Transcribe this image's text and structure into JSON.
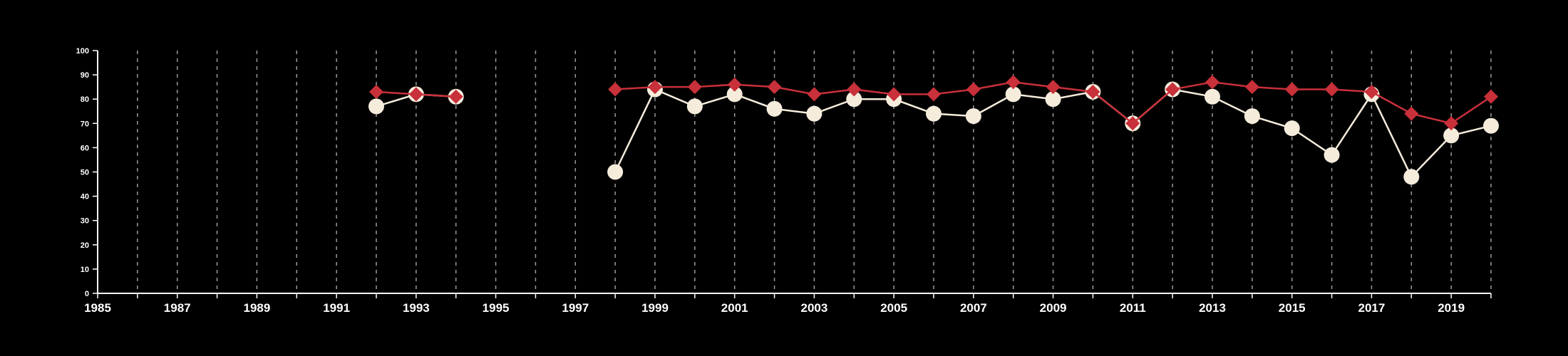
{
  "chart_data": {
    "type": "line",
    "title": "",
    "xlabel": "",
    "ylabel": "",
    "xlim": [
      1985,
      2020
    ],
    "ylim": [
      0,
      100
    ],
    "x_ticks": [
      1985,
      1987,
      1989,
      1991,
      1993,
      1995,
      1997,
      1999,
      2001,
      2003,
      2005,
      2007,
      2009,
      2011,
      2013,
      2015,
      2017,
      2019
    ],
    "y_ticks": [
      0,
      10,
      20,
      30,
      40,
      50,
      60,
      70,
      80,
      90,
      100
    ],
    "grid": "vertical-dashed",
    "legend": "none",
    "background": "#000000",
    "series": [
      {
        "color": "#c8303a",
        "marker": "diamond",
        "points": [
          [
            1992,
            83
          ],
          [
            1993,
            82
          ],
          [
            1994,
            81
          ],
          [
            1995,
            null
          ],
          [
            1996,
            null
          ],
          [
            1997,
            null
          ],
          [
            1998,
            84
          ],
          [
            1999,
            85
          ],
          [
            2000,
            85
          ],
          [
            2001,
            86
          ],
          [
            2002,
            85
          ],
          [
            2003,
            82
          ],
          [
            2004,
            84
          ],
          [
            2005,
            82
          ],
          [
            2006,
            82
          ],
          [
            2007,
            84
          ],
          [
            2008,
            87
          ],
          [
            2009,
            85
          ],
          [
            2010,
            83
          ],
          [
            2011,
            70
          ],
          [
            2012,
            84
          ],
          [
            2013,
            87
          ],
          [
            2014,
            85
          ],
          [
            2015,
            84
          ],
          [
            2016,
            84
          ],
          [
            2017,
            83
          ],
          [
            2018,
            74
          ],
          [
            2019,
            70
          ],
          [
            2020,
            81
          ]
        ]
      },
      {
        "color": "#f5ecdc",
        "marker": "circle",
        "points": [
          [
            1992,
            77
          ],
          [
            1993,
            82
          ],
          [
            1994,
            81
          ],
          [
            1995,
            null
          ],
          [
            1996,
            null
          ],
          [
            1997,
            null
          ],
          [
            1998,
            50
          ],
          [
            1999,
            84
          ],
          [
            2000,
            77
          ],
          [
            2001,
            82
          ],
          [
            2002,
            76
          ],
          [
            2003,
            74
          ],
          [
            2004,
            80
          ],
          [
            2005,
            80
          ],
          [
            2006,
            74
          ],
          [
            2007,
            73
          ],
          [
            2008,
            82
          ],
          [
            2009,
            80
          ],
          [
            2010,
            83
          ],
          [
            2011,
            70
          ],
          [
            2012,
            84
          ],
          [
            2013,
            81
          ],
          [
            2014,
            73
          ],
          [
            2015,
            68
          ],
          [
            2016,
            57
          ],
          [
            2017,
            82
          ],
          [
            2018,
            48
          ],
          [
            2019,
            65
          ],
          [
            2020,
            69
          ]
        ]
      }
    ]
  }
}
